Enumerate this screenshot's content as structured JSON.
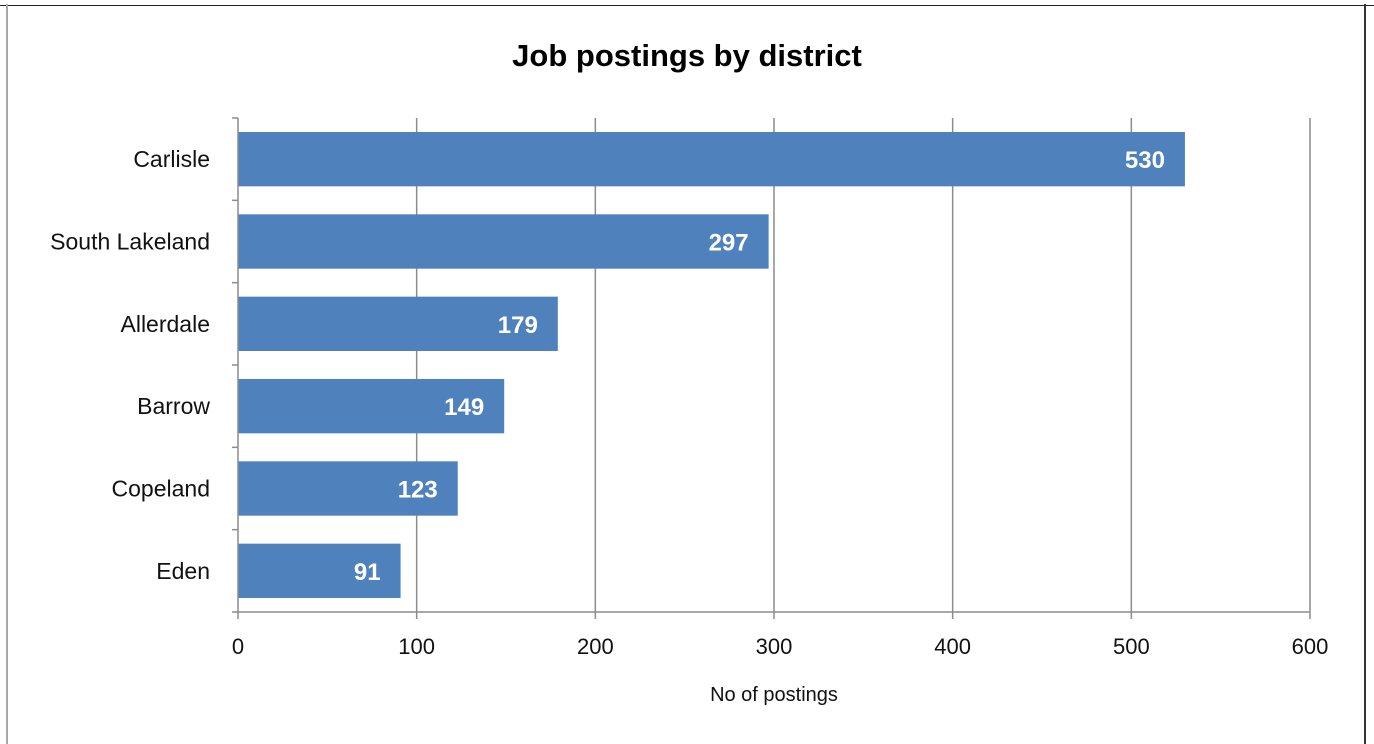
{
  "chart_data": {
    "type": "bar",
    "orientation": "horizontal",
    "title": "Job postings by district",
    "xlabel": "No of postings",
    "ylabel": "",
    "categories": [
      "Carlisle",
      "South Lakeland",
      "Allerdale",
      "Barrow",
      "Copeland",
      "Eden"
    ],
    "values": [
      530,
      297,
      179,
      149,
      123,
      91
    ],
    "xlim": [
      0,
      600
    ],
    "xticks": [
      0,
      100,
      200,
      300,
      400,
      500,
      600
    ],
    "xtick_labels": [
      "0",
      "100",
      "200",
      "300",
      "400",
      "500",
      "600"
    ],
    "grid": "vertical",
    "legend": "none",
    "data_labels": true,
    "bar_color": "#4f81bd",
    "grid_color": "#8c8c8c"
  }
}
